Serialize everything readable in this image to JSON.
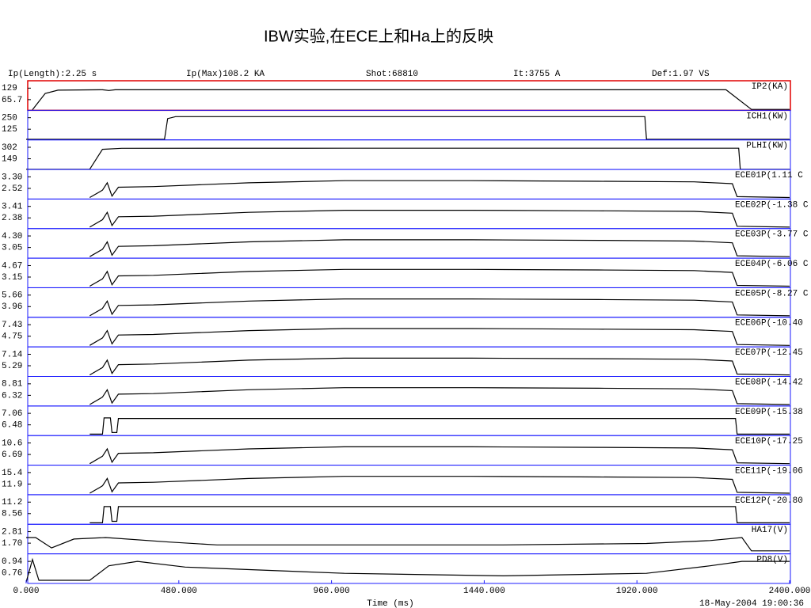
{
  "title": "IBW实验,在ECE上和Ha上的反映",
  "header": [
    "Ip(Length):2.25 s",
    "Ip(Max)108.2 KA",
    "Shot:68810",
    "It:3755 A",
    "Def:1.97 VS"
  ],
  "timestamp": "18-May-2004 19:00:36",
  "chart_data": [
    {
      "type": "line",
      "xlim": [
        0,
        2400
      ],
      "ylim": [
        6.9,
        169.7
      ],
      "yticks": [
        129,
        65.7
      ],
      "x": [
        20,
        60,
        100,
        240,
        260,
        280,
        2200,
        2280,
        2400
      ],
      "series": [
        {
          "name": "IP2(KA)",
          "color": "#000000",
          "values": [
            10,
            100,
            118,
            120,
            116,
            120,
            120,
            12,
            12
          ]
        }
      ]
    },
    {
      "type": "line",
      "xlim": [
        0,
        2400
      ],
      "ylim": [
        9,
        330
      ],
      "yticks": [
        250,
        125
      ],
      "x": [
        0,
        435,
        445,
        470,
        1945,
        1950,
        2400
      ],
      "series": [
        {
          "name": "ICH1(KW)",
          "color": "#000000",
          "values": [
            15,
            15,
            240,
            262,
            262,
            15,
            15
          ]
        }
      ]
    },
    {
      "type": "line",
      "xlim": [
        0,
        2400
      ],
      "ylim": [
        7,
        400
      ],
      "yticks": [
        302,
        149
      ],
      "x": [
        0,
        200,
        240,
        300,
        1000,
        2000,
        2240,
        2245,
        2400
      ],
      "series": [
        {
          "name": "PLHI(KW)",
          "color": "#000000",
          "values": [
            10,
            10,
            275,
            288,
            290,
            290,
            290,
            10,
            10
          ]
        }
      ]
    },
    {
      "type": "line",
      "xlim": [
        0,
        2400
      ],
      "ylim": [
        1.8,
        3.8
      ],
      "yticks": [
        {
          "value": 3.3,
          "label": "3.30"
        },
        2.52
      ],
      "x": [
        200,
        240,
        255,
        270,
        290,
        400,
        700,
        1000,
        1400,
        1800,
        2100,
        2220,
        2235,
        2400
      ],
      "series": [
        {
          "name": "ECE01P(1.11 C",
          "color": "#000000",
          "values": [
            1.9,
            2.4,
            2.9,
            2.0,
            2.6,
            2.64,
            2.9,
            3.04,
            3.04,
            3.0,
            2.96,
            2.84,
            1.96,
            1.9
          ]
        }
      ]
    },
    {
      "type": "line",
      "xlim": [
        0,
        2400
      ],
      "ylim": [
        1.42,
        4.07
      ],
      "yticks": [
        3.41,
        2.38
      ],
      "x": [
        200,
        240,
        255,
        270,
        290,
        400,
        700,
        1000,
        1400,
        1800,
        2100,
        2220,
        2235,
        2400
      ],
      "series": [
        {
          "name": "ECE02P(-1.38 C",
          "color": "#000000",
          "values": [
            1.55,
            2.22,
            2.88,
            1.69,
            2.48,
            2.53,
            2.88,
            3.06,
            3.06,
            3.01,
            2.96,
            2.8,
            1.63,
            1.55
          ]
        }
      ]
    },
    {
      "type": "line",
      "xlim": [
        0,
        2400
      ],
      "ylim": [
        1.89,
        5.1
      ],
      "yticks": [
        {
          "value": 4.3,
          "label": "4.30"
        },
        3.05
      ],
      "x": [
        200,
        240,
        255,
        270,
        290,
        400,
        700,
        1000,
        1400,
        1800,
        2100,
        2220,
        2235,
        2400
      ],
      "series": [
        {
          "name": "ECE03P(-3.77 C",
          "color": "#000000",
          "values": [
            2.05,
            2.85,
            3.66,
            2.21,
            3.17,
            3.24,
            3.66,
            3.88,
            3.88,
            3.82,
            3.75,
            3.56,
            2.15,
            2.05
          ]
        }
      ]
    },
    {
      "type": "line",
      "xlim": [
        0,
        2400
      ],
      "ylim": [
        1.74,
        5.65
      ],
      "yticks": [
        4.67,
        3.15
      ],
      "x": [
        200,
        240,
        255,
        270,
        290,
        400,
        700,
        1000,
        1400,
        1800,
        2100,
        2220,
        2235,
        2400
      ],
      "series": [
        {
          "name": "ECE04P(-6.06 C",
          "color": "#000000",
          "values": [
            1.94,
            2.91,
            3.89,
            2.13,
            3.3,
            3.38,
            3.89,
            4.16,
            4.16,
            4.09,
            4.01,
            3.77,
            2.05,
            1.94
          ]
        }
      ]
    },
    {
      "type": "line",
      "xlim": [
        0,
        2400
      ],
      "ylim": [
        2.38,
        6.75
      ],
      "yticks": [
        5.66,
        3.96
      ],
      "x": [
        200,
        240,
        255,
        270,
        290,
        400,
        700,
        1000,
        1400,
        1800,
        2100,
        2220,
        2235,
        2400
      ],
      "series": [
        {
          "name": "ECE05P(-8.27 C",
          "color": "#000000",
          "values": [
            2.6,
            3.69,
            4.78,
            2.82,
            4.13,
            4.22,
            4.78,
            5.09,
            5.09,
            5.0,
            4.91,
            4.65,
            2.73,
            2.6
          ]
        }
      ]
    },
    {
      "type": "line",
      "xlim": [
        0,
        2400
      ],
      "ylim": [
        2.26,
        9.15
      ],
      "yticks": [
        7.43,
        4.75
      ],
      "x": [
        200,
        240,
        255,
        270,
        290,
        400,
        700,
        1000,
        1400,
        1800,
        2100,
        2220,
        2235,
        2400
      ],
      "series": [
        {
          "name": "ECE06P(-10.40",
          "color": "#000000",
          "values": [
            2.6,
            4.33,
            6.05,
            2.95,
            5.02,
            5.15,
            6.05,
            6.53,
            6.53,
            6.39,
            6.26,
            5.84,
            2.81,
            2.6
          ]
        }
      ]
    },
    {
      "type": "line",
      "xlim": [
        0,
        2400
      ],
      "ylim": [
        3.57,
        8.33
      ],
      "yticks": [
        7.14,
        5.29
      ],
      "x": [
        200,
        240,
        255,
        270,
        290,
        400,
        700,
        1000,
        1400,
        1800,
        2100,
        2220,
        2235,
        2400
      ],
      "series": [
        {
          "name": "ECE07P(-12.45",
          "color": "#000000",
          "values": [
            3.81,
            5.0,
            6.19,
            4.05,
            5.47,
            5.57,
            6.19,
            6.52,
            6.52,
            6.43,
            6.33,
            6.05,
            3.95,
            3.81
          ]
        }
      ]
    },
    {
      "type": "line",
      "xlim": [
        0,
        2400
      ],
      "ylim": [
        4.01,
        10.41
      ],
      "yticks": [
        8.81,
        6.32
      ],
      "x": [
        200,
        240,
        255,
        270,
        290,
        400,
        700,
        1000,
        1400,
        1800,
        2100,
        2220,
        2235,
        2400
      ],
      "series": [
        {
          "name": "ECE08P(-14.42",
          "color": "#000000",
          "values": [
            4.33,
            5.93,
            7.53,
            4.65,
            6.57,
            6.7,
            7.53,
            7.98,
            7.98,
            7.85,
            7.72,
            7.34,
            4.52,
            4.33
          ]
        }
      ]
    },
    {
      "type": "line",
      "xlim": [
        0,
        2400
      ],
      "ylim": [
        5.94,
        7.43
      ],
      "yticks": [
        7.06,
        6.48
      ],
      "x": [
        200,
        240,
        245,
        265,
        270,
        285,
        290,
        2230,
        2235,
        2400
      ],
      "series": [
        {
          "name": "ECE09P(-15.38",
          "color": "#000000",
          "values": [
            6.01,
            6.01,
            6.83,
            6.83,
            6.09,
            6.09,
            6.8,
            6.8,
            6.01,
            6.01
          ]
        }
      ]
    },
    {
      "type": "line",
      "xlim": [
        0,
        2400
      ],
      "ylim": [
        3.06,
        13.11
      ],
      "yticks": [
        10.6,
        6.69
      ],
      "x": [
        200,
        240,
        255,
        270,
        290,
        400,
        700,
        1000,
        1400,
        1800,
        2100,
        2220,
        2235,
        2400
      ],
      "series": [
        {
          "name": "ECE10P(-17.25",
          "color": "#000000",
          "values": [
            3.56,
            6.08,
            8.59,
            4.07,
            7.08,
            7.28,
            8.59,
            9.29,
            9.29,
            9.09,
            8.89,
            8.29,
            3.86,
            3.56
          ]
        }
      ]
    },
    {
      "type": "line",
      "xlim": [
        0,
        2400
      ],
      "ylim": [
        8.65,
        17.65
      ],
      "yticks": [
        15.4,
        11.9
      ],
      "x": [
        200,
        240,
        255,
        270,
        290,
        400,
        700,
        1000,
        1400,
        1800,
        2100,
        2220,
        2235,
        2400
      ],
      "series": [
        {
          "name": "ECE11P(-19.06",
          "color": "#000000",
          "values": [
            9.1,
            11.35,
            13.6,
            9.55,
            12.25,
            12.43,
            13.6,
            14.23,
            14.23,
            14.05,
            13.87,
            13.33,
            9.37,
            9.1
          ]
        }
      ]
    },
    {
      "type": "line",
      "xlim": [
        0,
        2400
      ],
      "ylim": [
        6.11,
        12.9
      ],
      "yticks": [
        11.2,
        8.56
      ],
      "x": [
        200,
        240,
        245,
        265,
        270,
        285,
        290,
        2230,
        2235,
        2400
      ],
      "series": [
        {
          "name": "ECE12P(-20.80",
          "color": "#000000",
          "values": [
            6.45,
            6.45,
            10.18,
            10.18,
            6.79,
            6.79,
            10.18,
            10.18,
            6.45,
            6.45
          ]
        }
      ]
    },
    {
      "type": "line",
      "xlim": [
        0,
        2400
      ],
      "ylim": [
        0.67,
        3.52
      ],
      "yticks": [
        2.81,
        {
          "value": 1.7,
          "label": "1.70"
        }
      ],
      "x": [
        0,
        30,
        80,
        150,
        250,
        450,
        600,
        1500,
        1950,
        2150,
        2250,
        2280,
        2400
      ],
      "series": [
        {
          "name": "HA17(V)",
          "color": "#000000",
          "values": [
            2.24,
            2.24,
            1.24,
            2.1,
            2.24,
            1.81,
            1.53,
            1.53,
            1.67,
            1.95,
            2.24,
            0.96,
            0.96
          ]
        }
      ]
    },
    {
      "type": "line",
      "xlim": [
        0,
        2400
      ],
      "ylim": [
        0.59,
        1.06
      ],
      "yticks": [
        0.94,
        0.76
      ],
      "x": [
        0,
        20,
        40,
        200,
        260,
        350,
        500,
        1000,
        1500,
        1950,
        2150,
        2250,
        2400
      ],
      "series": [
        {
          "name": "PD8(V)",
          "color": "#000000",
          "values": [
            0.61,
            0.97,
            0.64,
            0.64,
            0.87,
            0.94,
            0.85,
            0.75,
            0.71,
            0.75,
            0.87,
            0.94,
            0.94
          ]
        }
      ],
      "xlabel": "Time (ms)",
      "xticks": [
        {
          "value": 0,
          "label": "0.000"
        },
        {
          "value": 480,
          "label": "480.000"
        },
        {
          "value": 960,
          "label": "960.000"
        },
        {
          "value": 1440,
          "label": "1440.000"
        },
        {
          "value": 1920,
          "label": "1920.000"
        },
        {
          "value": 2400,
          "label": "2400.000"
        }
      ]
    }
  ]
}
